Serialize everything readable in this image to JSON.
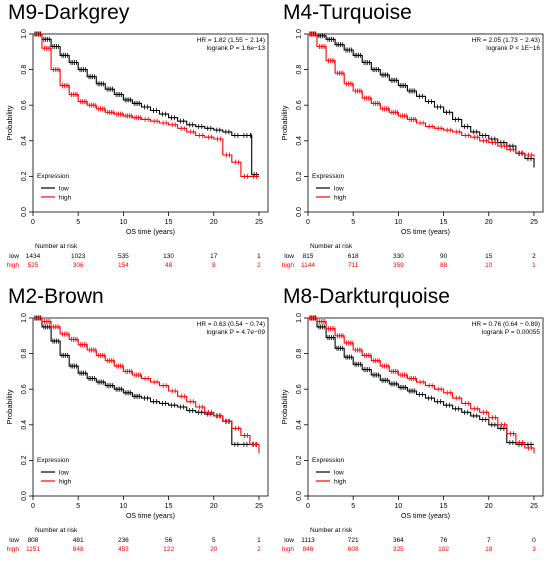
{
  "chart_data": [
    {
      "type": "line",
      "title": "M9-Darkgrey",
      "hr_text": "HR = 1.82 (1.55 − 2.14)",
      "logrank_text": "logrank P = 1.6e−13",
      "xlabel": "OS time (years)",
      "ylabel": "Probability",
      "xlim": [
        0,
        26
      ],
      "ylim": [
        0,
        1
      ],
      "x_ticks": [
        0,
        5,
        10,
        15,
        20,
        25
      ],
      "y_ticks": [
        "0.0",
        "0.2",
        "0.4",
        "0.6",
        "0.8",
        "1.0"
      ],
      "legend_title": "Expression",
      "legend_position": "bottom-left",
      "series": [
        {
          "name": "low",
          "color": "#000000",
          "x": [
            0,
            1,
            2,
            3,
            4,
            5,
            6,
            7,
            8,
            9,
            10,
            11,
            12,
            13,
            14,
            15,
            16,
            17,
            18,
            19,
            20,
            21,
            22,
            23,
            24,
            24.2,
            25
          ],
          "y": [
            1.0,
            0.97,
            0.93,
            0.88,
            0.84,
            0.8,
            0.76,
            0.72,
            0.69,
            0.66,
            0.63,
            0.61,
            0.59,
            0.57,
            0.55,
            0.53,
            0.51,
            0.49,
            0.48,
            0.47,
            0.46,
            0.45,
            0.43,
            0.43,
            0.43,
            0.21,
            0.21
          ]
        },
        {
          "name": "high",
          "color": "#ff0000",
          "x": [
            0,
            1,
            2,
            3,
            4,
            5,
            6,
            7,
            8,
            9,
            10,
            11,
            12,
            13,
            14,
            15,
            16,
            17,
            18,
            19,
            20,
            21,
            22,
            23,
            24,
            25
          ],
          "y": [
            1.0,
            0.92,
            0.8,
            0.71,
            0.66,
            0.62,
            0.6,
            0.58,
            0.56,
            0.55,
            0.54,
            0.53,
            0.52,
            0.51,
            0.5,
            0.49,
            0.47,
            0.45,
            0.43,
            0.42,
            0.41,
            0.32,
            0.28,
            0.2,
            0.2,
            0.2
          ]
        }
      ],
      "risk_table": {
        "header": "Number at risk",
        "rows": [
          {
            "label": "low",
            "color": "#000000",
            "values": [
              "1434",
              "1023",
              "535",
              "130",
              "17",
              "1"
            ]
          },
          {
            "label": "high",
            "color": "#ff0000",
            "values": [
              "525",
              "306",
              "154",
              "48",
              "8",
              "2"
            ]
          }
        ]
      }
    },
    {
      "type": "line",
      "title": "M4-Turquoise",
      "hr_text": "HR = 2.05 (1.73 − 2.43)",
      "logrank_text": "logrank P < 1E−16",
      "xlabel": "OS time (years)",
      "ylabel": "Probability",
      "xlim": [
        0,
        26
      ],
      "ylim": [
        0,
        1
      ],
      "x_ticks": [
        0,
        5,
        10,
        15,
        20,
        25
      ],
      "y_ticks": [
        "0.0",
        "0.2",
        "0.4",
        "0.6",
        "0.8",
        "1.0"
      ],
      "legend_title": "Expression",
      "legend_position": "bottom-left",
      "series": [
        {
          "name": "low",
          "color": "#000000",
          "x": [
            0,
            1,
            2,
            3,
            4,
            5,
            6,
            7,
            8,
            9,
            10,
            11,
            12,
            13,
            14,
            15,
            16,
            17,
            18,
            19,
            20,
            21,
            22,
            23,
            24,
            25
          ],
          "y": [
            1.0,
            0.99,
            0.97,
            0.94,
            0.91,
            0.88,
            0.84,
            0.8,
            0.77,
            0.74,
            0.71,
            0.68,
            0.65,
            0.62,
            0.59,
            0.56,
            0.52,
            0.48,
            0.45,
            0.43,
            0.41,
            0.39,
            0.37,
            0.33,
            0.3,
            0.25
          ]
        },
        {
          "name": "high",
          "color": "#ff0000",
          "x": [
            0,
            1,
            2,
            3,
            4,
            5,
            6,
            7,
            8,
            9,
            10,
            11,
            12,
            13,
            14,
            15,
            16,
            17,
            18,
            19,
            20,
            21,
            22,
            23,
            24,
            25
          ],
          "y": [
            1.0,
            0.93,
            0.85,
            0.78,
            0.72,
            0.68,
            0.64,
            0.61,
            0.58,
            0.56,
            0.54,
            0.52,
            0.5,
            0.48,
            0.47,
            0.46,
            0.45,
            0.43,
            0.42,
            0.4,
            0.39,
            0.37,
            0.35,
            0.33,
            0.32,
            0.31
          ]
        }
      ],
      "risk_table": {
        "header": "Number at risk",
        "rows": [
          {
            "label": "low",
            "color": "#000000",
            "values": [
              "815",
              "618",
              "330",
              "90",
              "15",
              "2"
            ]
          },
          {
            "label": "high",
            "color": "#ff0000",
            "values": [
              "1144",
              "711",
              "359",
              "88",
              "10",
              "1"
            ]
          }
        ]
      }
    },
    {
      "type": "line",
      "title": "M2-Brown",
      "hr_text": "HR = 0.63 (0.54 − 0.74)",
      "logrank_text": "logrank P = 4.7e−09",
      "xlabel": "OS time (years)",
      "ylabel": "Probability",
      "xlim": [
        0,
        26
      ],
      "ylim": [
        0,
        1
      ],
      "x_ticks": [
        0,
        5,
        10,
        15,
        20,
        25
      ],
      "y_ticks": [
        "0.0",
        "0.2",
        "0.4",
        "0.6",
        "0.8",
        "1.0"
      ],
      "legend_title": "Expression",
      "legend_position": "bottom-left",
      "series": [
        {
          "name": "low",
          "color": "#000000",
          "x": [
            0,
            1,
            2,
            3,
            4,
            5,
            6,
            7,
            8,
            9,
            10,
            11,
            12,
            13,
            14,
            15,
            16,
            17,
            18,
            19,
            20,
            21,
            22,
            23,
            24,
            25
          ],
          "y": [
            1.0,
            0.95,
            0.87,
            0.79,
            0.73,
            0.69,
            0.66,
            0.64,
            0.62,
            0.6,
            0.58,
            0.56,
            0.55,
            0.53,
            0.52,
            0.51,
            0.5,
            0.48,
            0.47,
            0.46,
            0.45,
            0.42,
            0.29,
            0.29,
            0.29,
            0.29
          ]
        },
        {
          "name": "high",
          "color": "#ff0000",
          "x": [
            0,
            1,
            2,
            3,
            4,
            5,
            6,
            7,
            8,
            9,
            10,
            11,
            12,
            13,
            14,
            15,
            16,
            17,
            18,
            19,
            20,
            21,
            22,
            23,
            24,
            25
          ],
          "y": [
            1.0,
            0.98,
            0.95,
            0.91,
            0.88,
            0.85,
            0.82,
            0.79,
            0.76,
            0.73,
            0.7,
            0.68,
            0.66,
            0.64,
            0.62,
            0.59,
            0.56,
            0.53,
            0.5,
            0.47,
            0.45,
            0.42,
            0.38,
            0.34,
            0.29,
            0.24
          ]
        }
      ],
      "risk_table": {
        "header": "Number at risk",
        "rows": [
          {
            "label": "low",
            "color": "#000000",
            "values": [
              "808",
              "481",
              "236",
              "56",
              "5",
              "1"
            ]
          },
          {
            "label": "high",
            "color": "#ff0000",
            "values": [
              "1151",
              "848",
              "453",
              "122",
              "20",
              "2"
            ]
          }
        ]
      }
    },
    {
      "type": "line",
      "title": "M8-Darkturquoise",
      "hr_text": "HR = 0.76 (0.64 − 0.89)",
      "logrank_text": "logrank P = 0.00055",
      "xlabel": "OS time (years)",
      "ylabel": "Probability",
      "xlim": [
        0,
        26
      ],
      "ylim": [
        0,
        1
      ],
      "x_ticks": [
        0,
        5,
        10,
        15,
        20,
        25
      ],
      "y_ticks": [
        "0.0",
        "0.2",
        "0.4",
        "0.6",
        "0.8",
        "1.0"
      ],
      "legend_title": "Expression",
      "legend_position": "bottom-left",
      "series": [
        {
          "name": "low",
          "color": "#000000",
          "x": [
            0,
            1,
            2,
            3,
            4,
            5,
            6,
            7,
            8,
            9,
            10,
            11,
            12,
            13,
            14,
            15,
            16,
            17,
            18,
            19,
            20,
            21,
            22,
            23,
            24,
            25
          ],
          "y": [
            1.0,
            0.95,
            0.89,
            0.83,
            0.78,
            0.74,
            0.71,
            0.68,
            0.65,
            0.63,
            0.61,
            0.59,
            0.57,
            0.55,
            0.53,
            0.51,
            0.49,
            0.47,
            0.45,
            0.43,
            0.4,
            0.38,
            0.3,
            0.29,
            0.29,
            0.29
          ]
        },
        {
          "name": "high",
          "color": "#ff0000",
          "x": [
            0,
            1,
            2,
            3,
            4,
            5,
            6,
            7,
            8,
            9,
            10,
            11,
            12,
            13,
            14,
            15,
            16,
            17,
            18,
            19,
            20,
            21,
            22,
            23,
            24,
            25
          ],
          "y": [
            1.0,
            0.98,
            0.94,
            0.9,
            0.86,
            0.82,
            0.79,
            0.76,
            0.73,
            0.7,
            0.68,
            0.66,
            0.64,
            0.62,
            0.6,
            0.58,
            0.55,
            0.52,
            0.49,
            0.47,
            0.44,
            0.4,
            0.35,
            0.3,
            0.27,
            0.24
          ]
        }
      ],
      "risk_table": {
        "header": "Number at risk",
        "rows": [
          {
            "label": "low",
            "color": "#000000",
            "values": [
              "1113",
              "721",
              "364",
              "76",
              "7",
              "0"
            ]
          },
          {
            "label": "high",
            "color": "#ff0000",
            "values": [
              "846",
              "608",
              "325",
              "102",
              "18",
              "3"
            ]
          }
        ]
      }
    }
  ]
}
